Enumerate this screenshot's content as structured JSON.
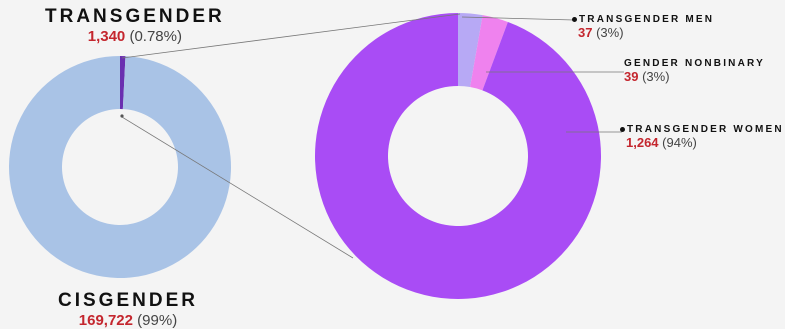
{
  "chart_data": [
    {
      "type": "pie",
      "variant": "donut",
      "slices": [
        {
          "label": "TRANSGENDER",
          "value": 1340,
          "value_text": "1,340",
          "pct_text": "(0.78%)",
          "color": "#6a2fb0"
        },
        {
          "label": "CISGENDER",
          "value": 169722,
          "value_text": "169,722",
          "pct_text": "(99%)",
          "color": "#a9c3e6"
        }
      ]
    },
    {
      "type": "pie",
      "variant": "donut",
      "slices": [
        {
          "label": "TRANSGENDER MEN",
          "value": 37,
          "value_text": "37",
          "pct_text": "(3%)",
          "color": "#b7a9f5"
        },
        {
          "label": "GENDER NONBINARY",
          "value": 39,
          "value_text": "39",
          "pct_text": "(3%)",
          "color": "#ef82ee"
        },
        {
          "label": "TRANSGENDER WOMEN",
          "value": 1264,
          "value_text": "1,264",
          "pct_text": "(94%)",
          "color": "#a94cf5"
        }
      ]
    }
  ],
  "colors": {
    "background": "#f4f4f4",
    "highlight_number": "#c4262e",
    "leader_line": "#777777"
  }
}
